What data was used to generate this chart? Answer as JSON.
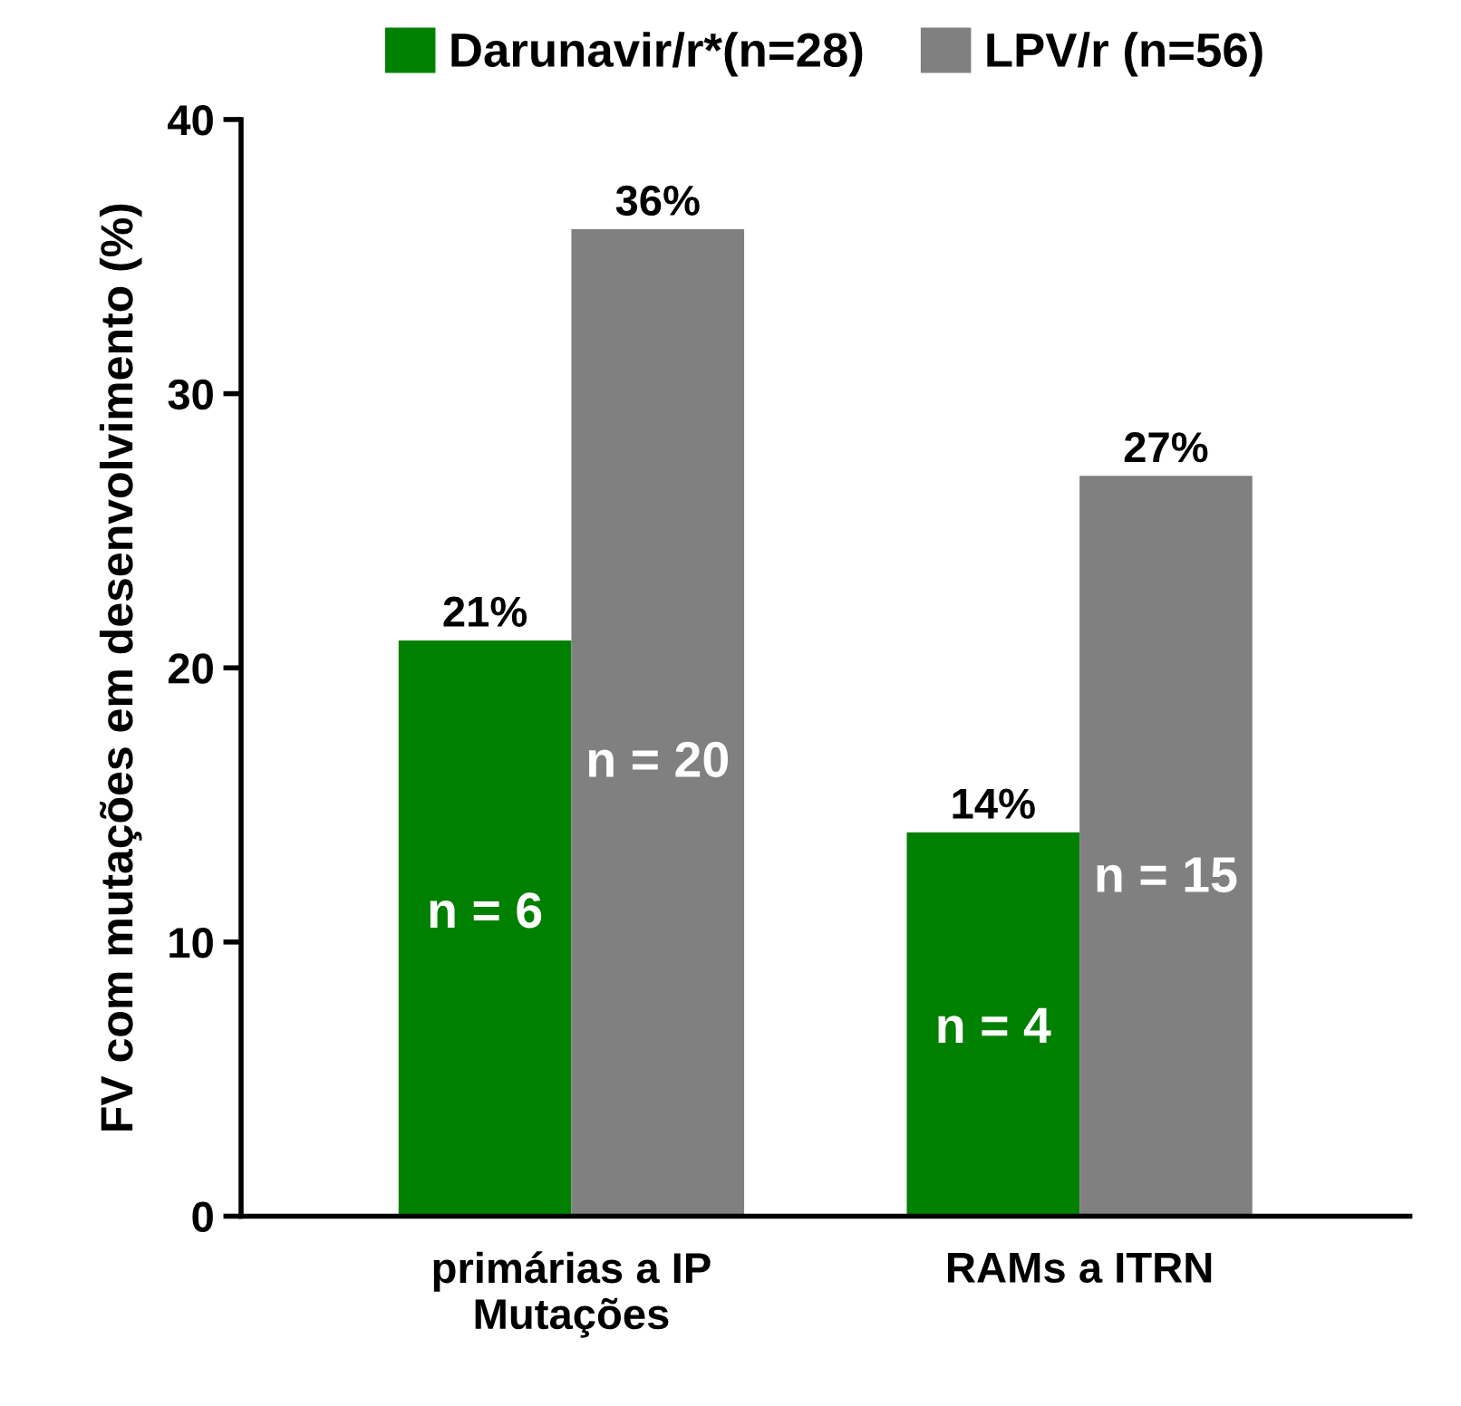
{
  "chart_data": {
    "type": "bar",
    "ylabel": "FV com mutações em desenvolvimento (%)",
    "categories": [
      "primárias a IP\nMutações",
      "RAMs a ITRN"
    ],
    "series": [
      {
        "name": "Darunavir/r*(n=28)",
        "color": "#008000",
        "values": [
          21,
          14
        ],
        "value_labels": [
          "21%",
          "14%"
        ]
      },
      {
        "name": "LPV/r (n=56)",
        "color": "#808080",
        "values": [
          36,
          27
        ],
        "value_labels": [
          "36%",
          "27%"
        ]
      }
    ],
    "annotations": [
      {
        "text": "n = 6",
        "x": "primárias a IP\nMutações",
        "y": 11
      },
      {
        "text": "n = 20",
        "x": "primárias a IP\nMutações",
        "y": 16.5
      },
      {
        "text": "n = 4",
        "x": "RAMs a ITRN",
        "y": 6.8
      },
      {
        "text": "n = 15",
        "x": "RAMs a ITRN",
        "y": 12.3
      }
    ],
    "ylim": [
      0,
      40
    ],
    "yticks": [
      0,
      10,
      20,
      30,
      40
    ],
    "grid": false,
    "legend": "top"
  }
}
